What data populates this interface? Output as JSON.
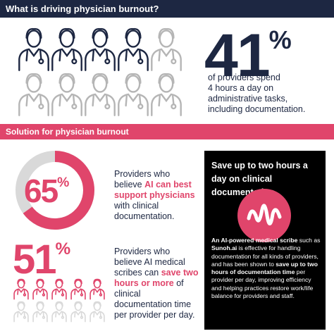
{
  "header": {
    "title": "What is driving physician burnout?"
  },
  "stat1": {
    "number": "41",
    "unit": "%",
    "text": [
      "of providers spend",
      "4 hours a day on",
      "administrative tasks,",
      "including documentation."
    ]
  },
  "section": {
    "title": "Solution for physician burnout"
  },
  "donut": {
    "value": 65,
    "number": "65",
    "unit": "%"
  },
  "stat2": {
    "parts": [
      "Providers who believe ",
      "AI can best support physicians",
      " with clinical documentation."
    ]
  },
  "stat3": {
    "number": "51",
    "unit": "%",
    "parts": [
      "Providers who believe AI medical scribes can ",
      "save two hours or more",
      " of clinical documentation time per provider per day."
    ]
  },
  "box": {
    "title": "Save up to two hours a day on clinical documentation",
    "parts": [
      "An ",
      "AI-powered medical scribe",
      " such as ",
      "Sunoh.ai",
      " is effective for handling documentation for all kinds of providers, and has been shown to ",
      "save up to two hours of documentation time",
      " per provider per day, improving efficiency and helping practices restore work/life balance for providers and staff."
    ]
  }
}
